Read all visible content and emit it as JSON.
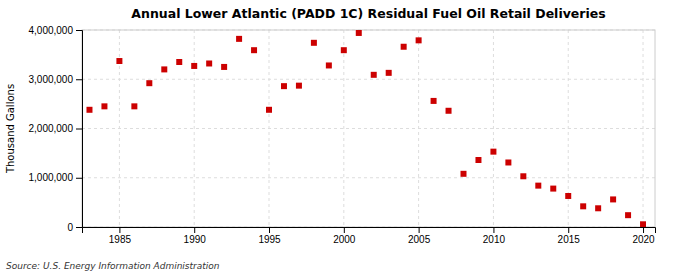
{
  "chart_data": {
    "type": "scatter",
    "title": "Annual Lower Atlantic (PADD 1C) Residual Fuel Oil Retail Deliveries",
    "ylabel": "Thousand Gallons",
    "source": "Source: U.S. Energy Information Administration",
    "color": "#cc0000",
    "marker": "square",
    "grid": true,
    "xlim": [
      1982.5,
      2020.8
    ],
    "xticks": [
      1985,
      1990,
      1995,
      2000,
      2005,
      2010,
      2015,
      2020
    ],
    "ylim": [
      0,
      4000000
    ],
    "yticks": [
      0,
      {
        "value": 1000000,
        "label": "1,000,000"
      },
      {
        "value": 2000000,
        "label": "2,000,000"
      },
      {
        "value": 3000000,
        "label": "3,000,000"
      },
      {
        "value": 4000000,
        "label": "4,000,000"
      }
    ],
    "x": [
      1983,
      1984,
      1985,
      1986,
      1987,
      1988,
      1989,
      1990,
      1991,
      1992,
      1993,
      1994,
      1995,
      1996,
      1997,
      1998,
      1999,
      2000,
      2001,
      2002,
      2003,
      2004,
      2005,
      2006,
      2007,
      2008,
      2009,
      2010,
      2011,
      2012,
      2013,
      2014,
      2015,
      2016,
      2017,
      2018,
      2019,
      2020
    ],
    "values": [
      2380000,
      2450000,
      3370000,
      2450000,
      2920000,
      3200000,
      3350000,
      3270000,
      3320000,
      3250000,
      3820000,
      3590000,
      2380000,
      2860000,
      2870000,
      3740000,
      3280000,
      3590000,
      3940000,
      3090000,
      3130000,
      3660000,
      3790000,
      2560000,
      2360000,
      1080000,
      1360000,
      1530000,
      1310000,
      1030000,
      840000,
      780000,
      630000,
      420000,
      380000,
      560000,
      240000,
      55000
    ]
  }
}
